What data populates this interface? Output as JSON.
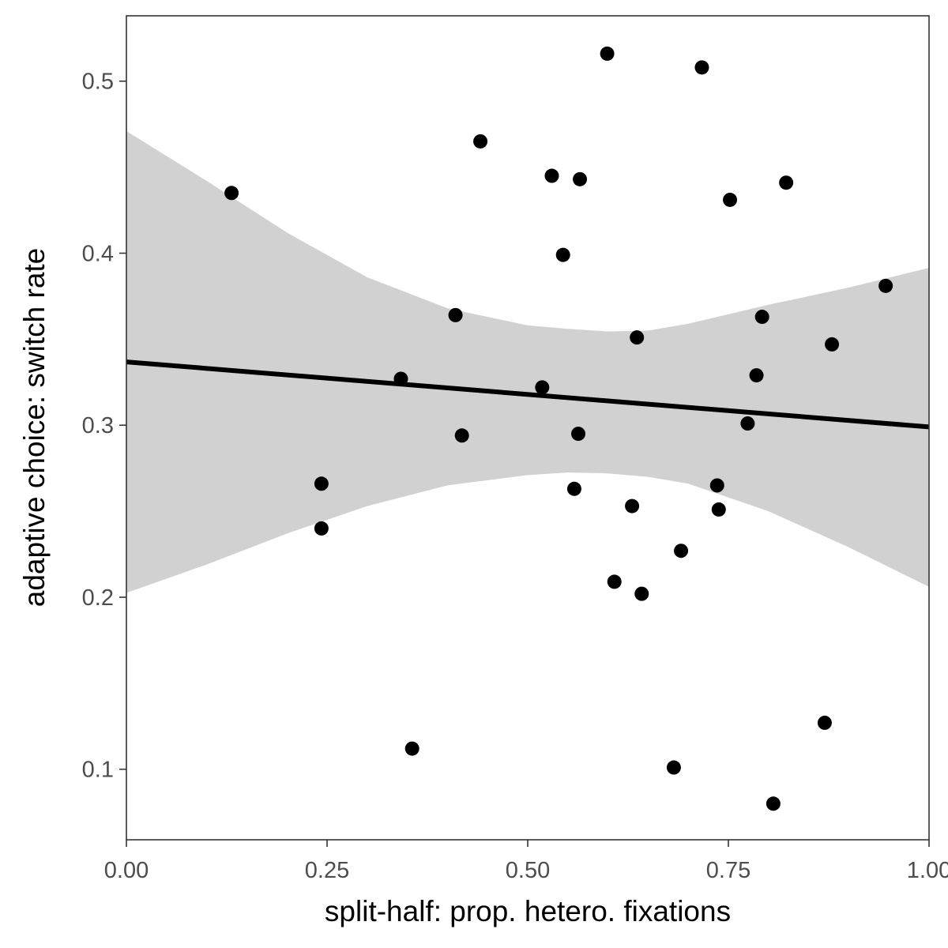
{
  "chart_data": {
    "type": "scatter",
    "title": "",
    "xlabel": "split-half: prop. hetero. fixations",
    "ylabel": "adaptive choice: switch rate",
    "xlim": [
      0,
      1
    ],
    "ylim": [
      0.059,
      0.538
    ],
    "grid": false,
    "x_ticks": [
      {
        "value": 0,
        "label": "0.00"
      },
      {
        "value": 0.25,
        "label": "0.25"
      },
      {
        "value": 0.5,
        "label": "0.50"
      },
      {
        "value": 0.75,
        "label": "0.75"
      },
      {
        "value": 1,
        "label": "1.00"
      }
    ],
    "y_ticks": [
      {
        "value": 0.1,
        "label": "0.1"
      },
      {
        "value": 0.2,
        "label": "0.2"
      },
      {
        "value": 0.3,
        "label": "0.3"
      },
      {
        "value": 0.4,
        "label": "0.4"
      },
      {
        "value": 0.5,
        "label": "0.5"
      }
    ],
    "points": [
      {
        "x": 0.131,
        "y": 0.435
      },
      {
        "x": 0.243,
        "y": 0.266
      },
      {
        "x": 0.243,
        "y": 0.24
      },
      {
        "x": 0.342,
        "y": 0.327
      },
      {
        "x": 0.356,
        "y": 0.112
      },
      {
        "x": 0.41,
        "y": 0.364
      },
      {
        "x": 0.418,
        "y": 0.294
      },
      {
        "x": 0.441,
        "y": 0.465
      },
      {
        "x": 0.518,
        "y": 0.322
      },
      {
        "x": 0.53,
        "y": 0.445
      },
      {
        "x": 0.544,
        "y": 0.399
      },
      {
        "x": 0.558,
        "y": 0.263
      },
      {
        "x": 0.563,
        "y": 0.295
      },
      {
        "x": 0.565,
        "y": 0.443
      },
      {
        "x": 0.599,
        "y": 0.516
      },
      {
        "x": 0.608,
        "y": 0.209
      },
      {
        "x": 0.63,
        "y": 0.253
      },
      {
        "x": 0.636,
        "y": 0.351
      },
      {
        "x": 0.642,
        "y": 0.202
      },
      {
        "x": 0.682,
        "y": 0.101
      },
      {
        "x": 0.691,
        "y": 0.227
      },
      {
        "x": 0.717,
        "y": 0.508
      },
      {
        "x": 0.736,
        "y": 0.265
      },
      {
        "x": 0.738,
        "y": 0.251
      },
      {
        "x": 0.752,
        "y": 0.431
      },
      {
        "x": 0.774,
        "y": 0.301
      },
      {
        "x": 0.785,
        "y": 0.329
      },
      {
        "x": 0.792,
        "y": 0.363
      },
      {
        "x": 0.806,
        "y": 0.08
      },
      {
        "x": 0.822,
        "y": 0.441
      },
      {
        "x": 0.87,
        "y": 0.127
      },
      {
        "x": 0.879,
        "y": 0.347
      },
      {
        "x": 0.946,
        "y": 0.381
      }
    ],
    "fit_line": {
      "x": [
        0,
        1
      ],
      "y": [
        0.3368,
        0.299
      ]
    },
    "confidence_band": {
      "x": [
        0.0,
        0.1,
        0.2,
        0.3,
        0.4,
        0.5,
        0.55,
        0.6,
        0.65,
        0.7,
        0.8,
        0.9,
        1.0
      ],
      "upper": [
        0.471,
        0.442,
        0.412,
        0.386,
        0.368,
        0.358,
        0.356,
        0.3545,
        0.355,
        0.359,
        0.37,
        0.38,
        0.3915
      ],
      "lower": [
        0.2025,
        0.219,
        0.237,
        0.253,
        0.265,
        0.271,
        0.2725,
        0.272,
        0.27,
        0.266,
        0.25,
        0.229,
        0.206
      ]
    },
    "colors": {
      "point": "#000000",
      "line": "#000000",
      "band": "#999999",
      "axis": "#333333",
      "tick_text": "#4d4d4d",
      "title_text": "#000000"
    }
  }
}
